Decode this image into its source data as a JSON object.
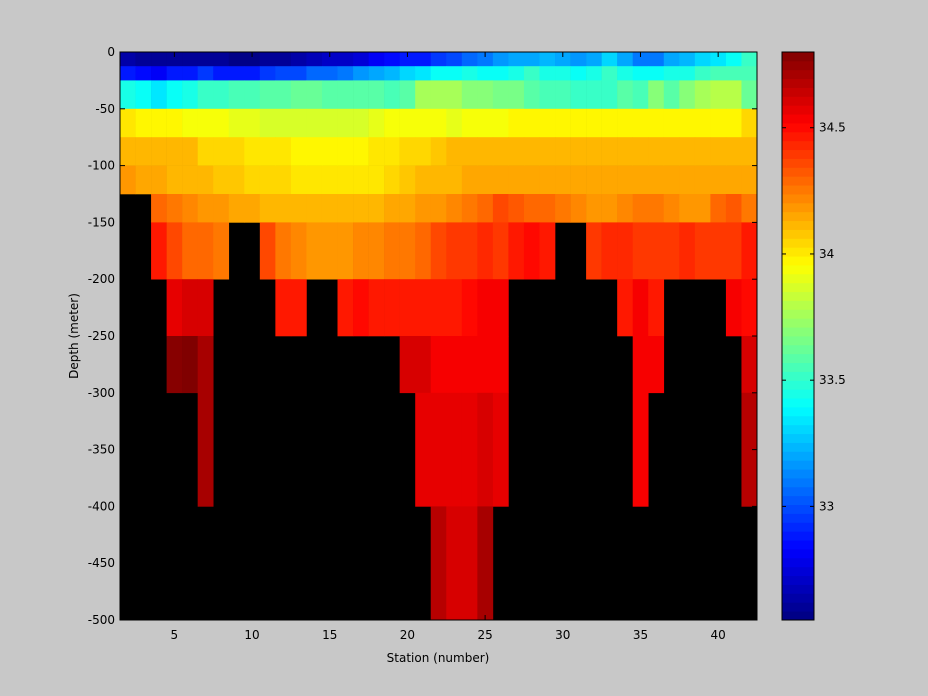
{
  "chart_data": {
    "type": "heatmap",
    "title": "",
    "xlabel": "Station (number)",
    "ylabel": "Depth (meter)",
    "xlim": [
      1.5,
      42.5
    ],
    "ylim": [
      -500,
      0
    ],
    "x_ticks": [
      5,
      10,
      15,
      20,
      25,
      30,
      35,
      40
    ],
    "x_tick_labels": [
      "5",
      "10",
      "15",
      "20",
      "25",
      "30",
      "35",
      "40"
    ],
    "y_ticks": [
      0,
      -50,
      -100,
      -150,
      -200,
      -250,
      -300,
      -350,
      -400,
      -450,
      -500
    ],
    "y_tick_labels": [
      "0",
      "-50",
      "-100",
      "-150",
      "-200",
      "-250",
      "-300",
      "-350",
      "-400",
      "-450",
      "-500"
    ],
    "colorbar": {
      "colormap": "jet",
      "range": [
        32.55,
        34.8
      ],
      "ticks": [
        33,
        33.5,
        34,
        34.5
      ],
      "tick_labels": [
        "33",
        "33.5",
        "34",
        "34.5"
      ]
    },
    "background_color": "#000000",
    "stations": [
      2,
      3,
      4,
      5,
      6,
      7,
      8,
      9,
      10,
      11,
      12,
      13,
      14,
      15,
      16,
      17,
      18,
      19,
      20,
      21,
      22,
      23,
      24,
      25,
      26,
      27,
      28,
      29,
      30,
      31,
      32,
      33,
      34,
      35,
      36,
      37,
      38,
      39,
      40,
      41,
      42
    ],
    "depth_bins": [
      {
        "top": 0,
        "bottom": -12.5
      },
      {
        "top": -12.5,
        "bottom": -25
      },
      {
        "top": -25,
        "bottom": -50
      },
      {
        "top": -50,
        "bottom": -75
      },
      {
        "top": -75,
        "bottom": -100
      },
      {
        "top": -100,
        "bottom": -125
      },
      {
        "top": -125,
        "bottom": -150
      },
      {
        "top": -150,
        "bottom": -200
      },
      {
        "top": -200,
        "bottom": -250
      },
      {
        "top": -250,
        "bottom": -300
      },
      {
        "top": -300,
        "bottom": -400
      },
      {
        "top": -400,
        "bottom": -500
      }
    ],
    "values": [
      [
        32.65,
        32.62,
        32.62,
        32.6,
        32.6,
        32.62,
        32.6,
        32.58,
        32.58,
        32.6,
        32.62,
        32.65,
        32.68,
        32.7,
        32.72,
        32.75,
        32.8,
        32.85,
        32.88,
        32.9,
        32.95,
        33.0,
        33.05,
        33.1,
        33.15,
        33.2,
        33.2,
        33.25,
        33.2,
        33.15,
        33.2,
        33.3,
        33.2,
        33.1,
        33.1,
        33.2,
        33.25,
        33.3,
        33.35,
        33.4,
        33.5
      ],
      [
        32.9,
        32.85,
        32.8,
        32.9,
        32.9,
        32.95,
        32.9,
        32.9,
        32.9,
        32.95,
        33.0,
        33.0,
        33.05,
        33.05,
        33.1,
        33.15,
        33.2,
        33.25,
        33.3,
        33.35,
        33.4,
        33.4,
        33.45,
        33.4,
        33.4,
        33.45,
        33.5,
        33.45,
        33.45,
        33.4,
        33.45,
        33.5,
        33.45,
        33.4,
        33.4,
        33.45,
        33.45,
        33.5,
        33.55,
        33.55,
        33.55
      ],
      [
        33.45,
        33.4,
        33.35,
        33.4,
        33.45,
        33.5,
        33.5,
        33.55,
        33.55,
        33.6,
        33.6,
        33.62,
        33.62,
        33.6,
        33.6,
        33.58,
        33.6,
        33.55,
        33.58,
        33.75,
        33.75,
        33.75,
        33.7,
        33.7,
        33.65,
        33.65,
        33.6,
        33.55,
        33.55,
        33.5,
        33.5,
        33.5,
        33.6,
        33.55,
        33.7,
        33.6,
        33.7,
        33.75,
        33.8,
        33.8,
        33.62
      ],
      [
        34.0,
        33.98,
        33.97,
        33.97,
        33.95,
        33.95,
        33.93,
        33.92,
        33.9,
        33.88,
        33.88,
        33.87,
        33.86,
        33.86,
        33.87,
        33.88,
        33.92,
        33.95,
        33.95,
        33.93,
        33.93,
        33.92,
        33.93,
        33.95,
        33.95,
        33.96,
        33.97,
        33.98,
        33.98,
        33.98,
        33.98,
        33.98,
        33.98,
        33.98,
        33.98,
        33.98,
        33.98,
        33.98,
        33.98,
        33.98,
        34.05
      ],
      [
        34.12,
        34.12,
        34.1,
        34.1,
        34.1,
        34.05,
        34.05,
        34.03,
        34.02,
        34.0,
        34.0,
        33.98,
        33.98,
        33.97,
        33.98,
        33.98,
        34.0,
        34.02,
        34.05,
        34.05,
        34.08,
        34.1,
        34.12,
        34.12,
        34.12,
        34.1,
        34.1,
        34.1,
        34.12,
        34.12,
        34.12,
        34.12,
        34.12,
        34.12,
        34.12,
        34.12,
        34.12,
        34.12,
        34.12,
        34.12,
        34.12
      ],
      [
        34.18,
        34.15,
        34.14,
        34.12,
        34.12,
        34.1,
        34.08,
        34.08,
        34.05,
        34.05,
        34.03,
        34.02,
        34.0,
        34.0,
        34.0,
        34.0,
        34.02,
        34.05,
        34.08,
        34.1,
        34.12,
        34.12,
        34.14,
        34.15,
        34.15,
        34.15,
        34.15,
        34.15,
        34.15,
        34.15,
        34.15,
        34.15,
        34.15,
        34.15,
        34.15,
        34.15,
        34.15,
        34.15,
        34.15,
        34.15,
        34.15
      ],
      [
        null,
        null,
        34.3,
        34.25,
        34.22,
        34.2,
        34.18,
        34.15,
        34.15,
        34.12,
        34.12,
        34.12,
        34.1,
        34.1,
        34.1,
        34.12,
        34.12,
        34.15,
        34.15,
        34.18,
        34.2,
        34.22,
        34.25,
        34.3,
        34.35,
        34.32,
        34.3,
        34.28,
        34.25,
        34.22,
        34.2,
        34.18,
        34.22,
        34.25,
        34.25,
        34.22,
        34.2,
        34.18,
        34.3,
        34.32,
        34.25
      ],
      [
        null,
        null,
        34.45,
        34.35,
        34.3,
        34.28,
        34.25,
        null,
        null,
        34.35,
        34.25,
        34.22,
        34.2,
        34.2,
        34.2,
        34.22,
        34.22,
        34.25,
        34.25,
        34.3,
        34.35,
        34.38,
        34.4,
        34.42,
        34.4,
        34.45,
        34.5,
        34.45,
        null,
        null,
        34.4,
        34.42,
        34.42,
        34.4,
        34.38,
        34.4,
        34.42,
        34.4,
        34.38,
        34.4,
        34.45
      ],
      [
        null,
        null,
        null,
        34.58,
        34.6,
        34.62,
        null,
        null,
        null,
        null,
        34.48,
        34.48,
        null,
        null,
        34.48,
        34.5,
        34.45,
        34.45,
        34.45,
        34.45,
        34.48,
        34.48,
        34.5,
        34.52,
        34.52,
        null,
        null,
        null,
        null,
        null,
        null,
        null,
        34.48,
        34.52,
        34.48,
        null,
        null,
        null,
        null,
        34.55,
        34.5
      ],
      [
        null,
        null,
        null,
        34.78,
        34.8,
        34.7,
        null,
        null,
        null,
        null,
        null,
        null,
        null,
        null,
        null,
        null,
        null,
        null,
        34.6,
        34.6,
        34.55,
        34.55,
        34.55,
        34.52,
        34.55,
        null,
        null,
        null,
        null,
        null,
        null,
        null,
        null,
        34.55,
        34.55,
        null,
        null,
        null,
        null,
        null,
        34.62
      ],
      [
        null,
        null,
        null,
        null,
        null,
        34.72,
        null,
        null,
        null,
        null,
        null,
        null,
        null,
        null,
        null,
        null,
        null,
        null,
        null,
        34.58,
        34.58,
        34.58,
        34.58,
        34.6,
        34.58,
        null,
        null,
        null,
        null,
        null,
        null,
        null,
        null,
        34.55,
        null,
        null,
        null,
        null,
        null,
        null,
        34.68
      ],
      [
        null,
        null,
        null,
        null,
        null,
        null,
        null,
        null,
        null,
        null,
        null,
        null,
        null,
        null,
        null,
        null,
        null,
        null,
        null,
        null,
        34.68,
        34.6,
        34.6,
        34.7,
        null,
        null,
        null,
        null,
        null,
        null,
        null,
        null,
        null,
        null,
        null,
        null,
        null,
        null,
        null,
        null,
        null
      ]
    ]
  }
}
